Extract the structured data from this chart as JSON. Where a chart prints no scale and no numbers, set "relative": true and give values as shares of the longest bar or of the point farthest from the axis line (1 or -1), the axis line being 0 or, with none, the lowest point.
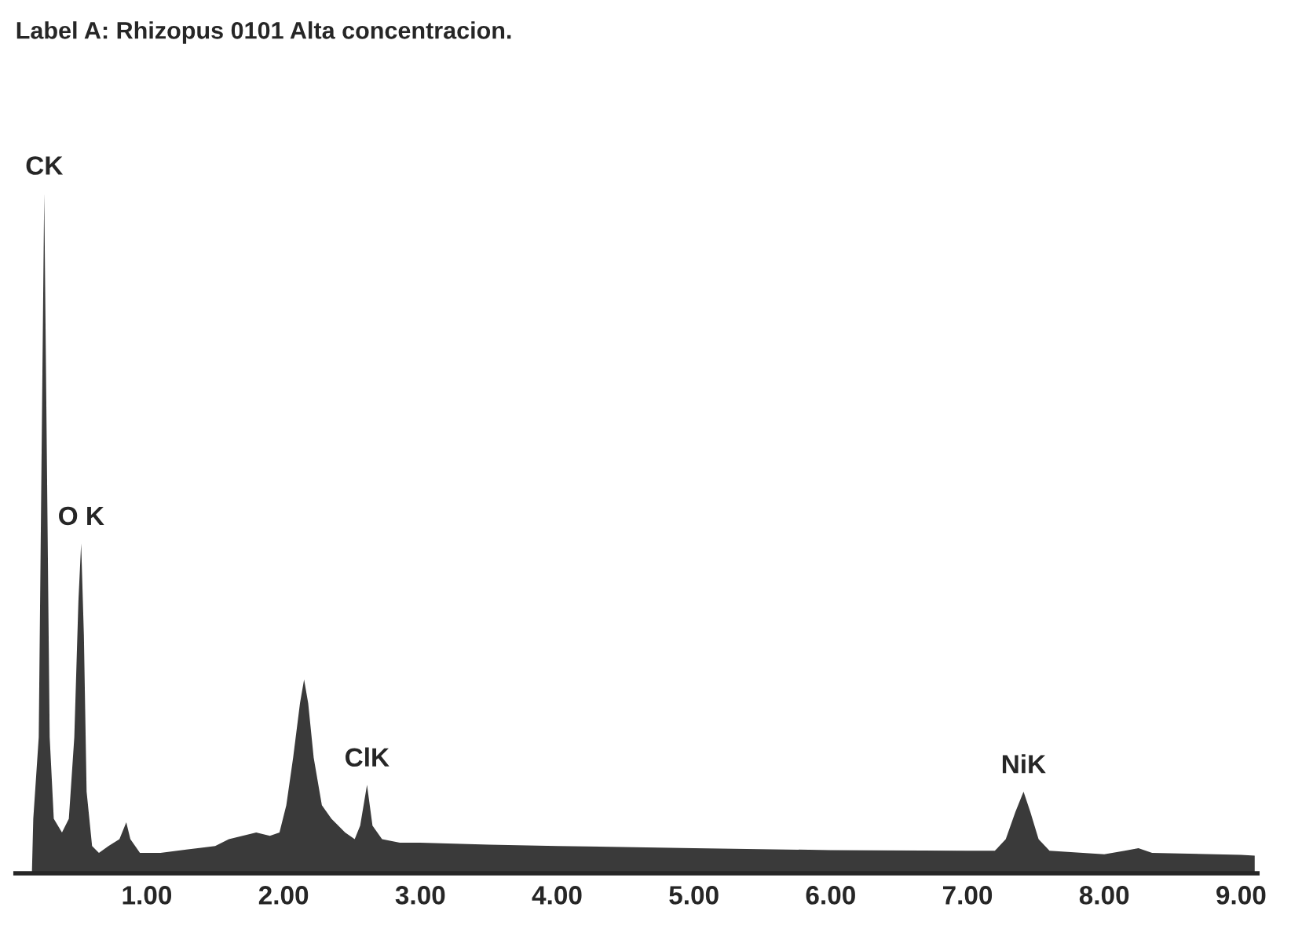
{
  "chart_data": {
    "type": "area",
    "title": "Label A: Rhizopus 0101 Alta concentracion.",
    "relative": true,
    "grid": false,
    "x": [
      0.16,
      0.17,
      0.21,
      0.23,
      0.25,
      0.27,
      0.29,
      0.32,
      0.38,
      0.43,
      0.47,
      0.5,
      0.52,
      0.54,
      0.56,
      0.6,
      0.65,
      0.72,
      0.8,
      0.85,
      0.88,
      0.95,
      1.1,
      1.3,
      1.5,
      1.6,
      1.7,
      1.8,
      1.9,
      1.97,
      2.02,
      2.07,
      2.12,
      2.15,
      2.18,
      2.22,
      2.28,
      2.35,
      2.45,
      2.52,
      2.56,
      2.61,
      2.65,
      2.72,
      2.85,
      3.0,
      3.5,
      4.0,
      5.0,
      6.0,
      7.0,
      7.2,
      7.28,
      7.35,
      7.41,
      7.46,
      7.52,
      7.6,
      8.0,
      8.15,
      8.25,
      8.35,
      9.0,
      9.1
    ],
    "series": [
      {
        "color": "#3a3a3a",
        "values": [
          0,
          0.08,
          0.2,
          0.6,
          1.0,
          0.6,
          0.2,
          0.08,
          0.06,
          0.08,
          0.2,
          0.4,
          0.485,
          0.35,
          0.12,
          0.04,
          0.03,
          0.04,
          0.05,
          0.075,
          0.05,
          0.03,
          0.03,
          0.035,
          0.04,
          0.05,
          0.055,
          0.06,
          0.055,
          0.06,
          0.1,
          0.17,
          0.25,
          0.285,
          0.25,
          0.17,
          0.1,
          0.08,
          0.06,
          0.05,
          0.07,
          0.13,
          0.07,
          0.05,
          0.045,
          0.045,
          0.042,
          0.04,
          0.037,
          0.034,
          0.033,
          0.033,
          0.05,
          0.09,
          0.12,
          0.09,
          0.05,
          0.033,
          0.028,
          0.033,
          0.037,
          0.03,
          0.027,
          0.026
        ]
      }
    ],
    "xlim": [
      0.04,
      9.12
    ],
    "xticks": [
      {
        "value": 1,
        "label": "1.00"
      },
      {
        "value": 2,
        "label": "2.00"
      },
      {
        "value": 3,
        "label": "3.00"
      },
      {
        "value": 4,
        "label": "4.00"
      },
      {
        "value": 5,
        "label": "5.00"
      },
      {
        "value": 6,
        "label": "6.00"
      },
      {
        "value": 7,
        "label": "7.00"
      },
      {
        "value": 8,
        "label": "8.00"
      },
      {
        "value": 9,
        "label": "9.00"
      }
    ],
    "annotations": [
      {
        "text": "CK",
        "x": 0.25,
        "y": 1.0
      },
      {
        "text": "O K",
        "x": 0.52,
        "y": 0.485
      },
      {
        "text": "ClK",
        "x": 2.61,
        "y": 0.13
      },
      {
        "text": "NiK",
        "x": 7.41,
        "y": 0.12
      }
    ]
  }
}
